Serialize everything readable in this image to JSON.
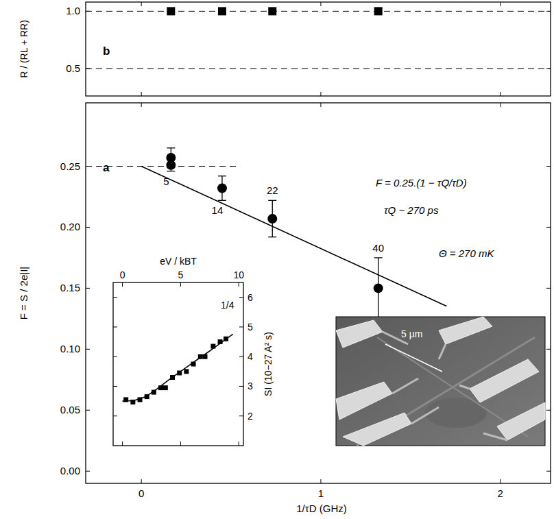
{
  "chart_data": [
    {
      "type": "scatter",
      "title": "a",
      "x_label": "1/τD (GHz)",
      "y_label": "F = S / 2e|I|",
      "xlim": [
        -0.31,
        2.28
      ],
      "xticks": [
        0,
        1,
        2
      ],
      "ylim": [
        -0.01,
        0.302
      ],
      "yticks": [
        {
          "value": 0,
          "label": "0.00"
        },
        {
          "value": 0.05,
          "label": "0.05"
        },
        {
          "value": 0.1,
          "label": "0.10"
        },
        {
          "value": 0.15,
          "label": "0.15"
        },
        {
          "value": 0.2,
          "label": "0.20"
        },
        {
          "value": 0.25,
          "label": "0.25"
        }
      ],
      "series": [
        {
          "type": "scatter",
          "marker": "circle",
          "color": "#000000",
          "x": [
            0.165,
            0.165,
            0.45,
            0.73,
            1.32
          ],
          "values": [
            0.257,
            0.251,
            0.232,
            0.207,
            0.15
          ],
          "errors": [
            0.008,
            0.005,
            0.01,
            0.015,
            0.025
          ],
          "point_labels": [
            "5",
            null,
            "14",
            "22",
            "40"
          ]
        },
        {
          "type": "line",
          "line_style": "solid",
          "color": "#000000",
          "x": [
            0,
            1.7
          ],
          "values": [
            0.25,
            0.1353
          ]
        },
        {
          "type": "line",
          "line_style": "dashed",
          "color": "#000000",
          "x": [
            -0.31,
            0.55
          ],
          "values": [
            0.25,
            0.25
          ]
        }
      ],
      "annotations": [
        "F = 0.25.(1 − τQ/τD)",
        "τQ ~ 270 ps",
        "Θ = 270 mK"
      ]
    },
    {
      "type": "scatter",
      "title": "b",
      "y_label": "R / (RL + RR)",
      "xlim": [
        -0.31,
        2.28
      ],
      "xticks": [
        0,
        1,
        2
      ],
      "ylim": [
        0.26,
        1.08
      ],
      "yticks": [
        {
          "value": 0.5,
          "label": "0.5"
        },
        {
          "value": 1,
          "label": "1.0"
        }
      ],
      "grid": true,
      "tick_labels": "y",
      "series": [
        {
          "type": "scatter",
          "marker": "square",
          "color": "#000000",
          "x": [
            0.165,
            0.45,
            0.73,
            1.32
          ],
          "values": [
            1,
            1,
            1,
            1
          ]
        }
      ]
    },
    {
      "type": "scatter",
      "x_label": "eV / kBT",
      "y_label": "SI (10−27 A² s)",
      "xlim": [
        -0.8,
        10.4
      ],
      "xticks": [
        0,
        5,
        10
      ],
      "ylim": [
        1,
        6.5
      ],
      "yticks": [
        2,
        3,
        4,
        5,
        6
      ],
      "series": [
        {
          "type": "scatter",
          "marker": "square",
          "color": "#000000",
          "x": [
            0.3,
            0.9,
            1.5,
            2.1,
            2.7,
            3.3,
            3.7,
            4.3,
            4.9,
            5.5,
            6.1,
            6.7,
            7.1,
            7.8,
            8.4,
            8.9
          ],
          "values": [
            2.55,
            2.47,
            2.55,
            2.65,
            2.8,
            2.95,
            2.95,
            3.3,
            3.45,
            3.5,
            3.75,
            4.0,
            4.0,
            4.35,
            4.5,
            4.6
          ]
        },
        {
          "type": "line",
          "line_style": "solid",
          "color": "#000000",
          "x": [
            0,
            1,
            2,
            3,
            4,
            5,
            6,
            7,
            8,
            9,
            9.5
          ],
          "values": [
            2.5,
            2.52,
            2.65,
            2.92,
            3.22,
            3.5,
            3.78,
            4.05,
            4.33,
            4.62,
            4.76
          ]
        }
      ],
      "annotations": [
        "1/4"
      ]
    }
  ],
  "sem_image": {
    "scale_label": "5 µm"
  }
}
